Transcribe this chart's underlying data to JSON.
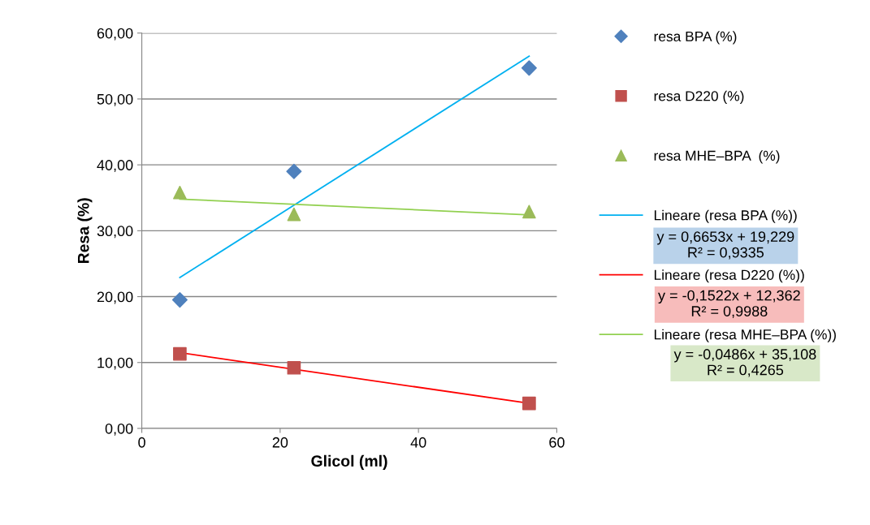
{
  "chart_data": {
    "type": "scatter",
    "xlabel": "Glicol (ml)",
    "ylabel": "Resa (%)",
    "xlim": [
      0,
      60
    ],
    "xticks": [
      0,
      20,
      40,
      60
    ],
    "ylim": [
      0,
      60
    ],
    "yticks": [
      {
        "value": 0,
        "label": "0,00"
      },
      {
        "value": 10,
        "label": "10,00"
      },
      {
        "value": 20,
        "label": "20,00"
      },
      {
        "value": 30,
        "label": "30,00"
      },
      {
        "value": 40,
        "label": "40,00"
      },
      {
        "value": 50,
        "label": "50,00"
      },
      {
        "value": 60,
        "label": "60,00"
      }
    ],
    "grid": "y",
    "legend": "right",
    "series": [
      {
        "name": "resa BPA (%)",
        "marker": "diamond",
        "color": "#4f81bd",
        "x": [
          5.5,
          22,
          56
        ],
        "values": [
          19.5,
          39.0,
          54.7
        ]
      },
      {
        "name": "resa D220 (%)",
        "marker": "square",
        "color": "#c0504d",
        "x": [
          5.5,
          22,
          56
        ],
        "values": [
          11.3,
          9.2,
          3.8
        ]
      },
      {
        "name": "resa MHE–BPA  (%)",
        "marker": "triangle",
        "color": "#9bbb59",
        "x": [
          5.5,
          22,
          56
        ],
        "values": [
          35.8,
          32.5,
          32.9
        ]
      },
      {
        "name": "Lineare (resa BPA (%))",
        "type": "line",
        "color": "#00b0f0",
        "x": [
          5.5,
          56
        ],
        "values": [
          22.9,
          56.5
        ]
      },
      {
        "name": "Lineare (resa D220 (%))",
        "type": "line",
        "color": "#ff0000",
        "x": [
          5.5,
          56
        ],
        "values": [
          11.5,
          3.8
        ]
      },
      {
        "name": "Lineare (resa MHE–BPA (%))",
        "type": "line",
        "color": "#92d050",
        "x": [
          5.5,
          56
        ],
        "values": [
          34.8,
          32.4
        ]
      }
    ],
    "annotations": [
      "y = 0,6653x + 19,229\nR² = 0,9335",
      "y = -0,1522x + 12,362\nR² = 0,9988",
      "y = -0,0486x + 35,108\nR² = 0,4265"
    ]
  }
}
